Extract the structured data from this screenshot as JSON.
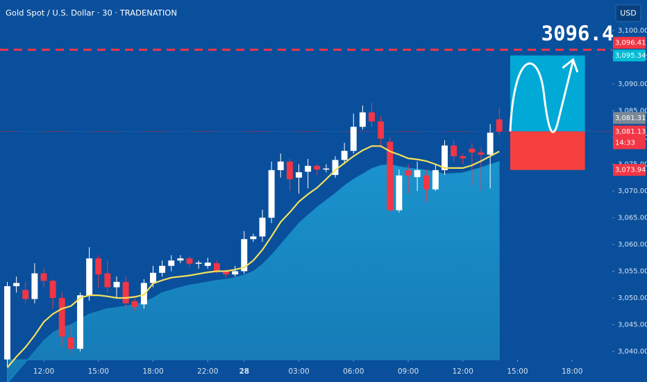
{
  "chart_data": {
    "type": "candlestick",
    "title": "Gold Spot / U.S. Dollar · 30 · TRADENATION",
    "currency": "USD",
    "up_color": "#ffffff",
    "down_color": "#f23645",
    "open": [
      3038.5,
      3052.2,
      3051.5,
      3049.8,
      3054.6,
      3053.2,
      3050,
      3042.6,
      3040.5,
      3050.5,
      3057.4,
      3054.6,
      3052,
      3053,
      3049.4,
      3048.8,
      3052.8,
      3054.7,
      3056,
      3057,
      3057.4,
      3056.4,
      3056,
      3056.5,
      3055,
      3054.4,
      3055,
      3061,
      3061.5,
      3065,
      3073.9,
      3075.5,
      3072.5,
      3073.6,
      3074.7,
      3074,
      3073,
      3075.8,
      3077.5,
      3082,
      3084.7,
      3083,
      3079.2,
      3066.4,
      3073.9,
      3072.6,
      3072.9,
      3070.3,
      3073.9,
      3078.5,
      3076.5,
      3077.9,
      3077.2,
      3076.8,
      3083.4
    ],
    "high": [
      3053,
      3054,
      3053,
      3056.5,
      3055.5,
      3053.5,
      3051,
      3045,
      3051,
      3059.5,
      3058,
      3057,
      3054,
      3054,
      3050,
      3053.5,
      3056,
      3057,
      3058,
      3058,
      3057.8,
      3057,
      3057.5,
      3057,
      3055.5,
      3056,
      3062.5,
      3062,
      3066.5,
      3075.5,
      3077,
      3076,
      3075,
      3076,
      3075,
      3075,
      3076.5,
      3079,
      3084.5,
      3086,
      3086.5,
      3084,
      3080,
      3074,
      3075,
      3075.5,
      3074,
      3075,
      3079.5,
      3079.5,
      3077,
      3079,
      3078,
      3082.5,
      3085.5
    ],
    "low": [
      3037,
      3051,
      3049,
      3049,
      3052,
      3048,
      3041,
      3039.5,
      3040,
      3049.5,
      3052,
      3051,
      3050,
      3048,
      3047.5,
      3048,
      3052,
      3054,
      3055,
      3056.5,
      3055.8,
      3055.5,
      3055.5,
      3054.5,
      3053.8,
      3054,
      3054.5,
      3060.5,
      3060.5,
      3064,
      3072.5,
      3070,
      3069.5,
      3070.5,
      3073,
      3073.5,
      3072.5,
      3075,
      3077,
      3081.5,
      3082,
      3078,
      3066,
      3066,
      3069.5,
      3070,
      3068,
      3070,
      3073,
      3075.5,
      3075,
      3071,
      3070,
      3070.5,
      3080.5
    ],
    "close": [
      3052.2,
      3052.8,
      3049.8,
      3054.6,
      3053.2,
      3050,
      3042.8,
      3040.5,
      3050.5,
      3057.4,
      3054.4,
      3052,
      3053,
      3049,
      3048.3,
      3052.8,
      3054.7,
      3056,
      3057,
      3057.4,
      3056.4,
      3056.6,
      3056.6,
      3055,
      3054.4,
      3055,
      3061,
      3061.5,
      3065,
      3073.9,
      3075.5,
      3072.2,
      3073.5,
      3074.7,
      3074,
      3074.2,
      3075.8,
      3077.5,
      3082,
      3084.7,
      3083,
      3079.8,
      3066.4,
      3072.9,
      3072.9,
      3073.9,
      3070.3,
      3073.9,
      3078.5,
      3076.5,
      3076.1,
      3077.2,
      3076.8,
      3080.9,
      3081.1
    ],
    "ma": {
      "color": "#f4e15c",
      "values": [
        3037,
        3039,
        3040.8,
        3043,
        3045.5,
        3047,
        3048,
        3048.5,
        3050,
        3050.5,
        3050.5,
        3050.3,
        3050,
        3050,
        3050.2,
        3050.6,
        3052.7,
        3053.3,
        3053.8,
        3054,
        3054.2,
        3054.5,
        3054.8,
        3055,
        3055,
        3055.3,
        3055.7,
        3057,
        3059,
        3061.5,
        3064.2,
        3066,
        3068,
        3069.4,
        3070.6,
        3072.2,
        3073.9,
        3075.2,
        3076.5,
        3077.6,
        3078.4,
        3078.4,
        3077.4,
        3076.8,
        3076.1,
        3075.9,
        3075.6,
        3075,
        3074.3,
        3074.3,
        3074.3,
        3074.8,
        3075.6,
        3076.5,
        3077.4
      ]
    },
    "area": {
      "color": "#1389c3",
      "values": [
        3034,
        3036,
        3038,
        3040,
        3042,
        3043.5,
        3044.5,
        3045,
        3046,
        3047,
        3047.5,
        3048,
        3048.2,
        3048.5,
        3048.8,
        3049.2,
        3050,
        3051,
        3051.5,
        3052,
        3052.4,
        3052.7,
        3053,
        3053.3,
        3053.5,
        3053.8,
        3054.3,
        3055,
        3056.3,
        3058,
        3060,
        3062,
        3064,
        3065.5,
        3067,
        3068.3,
        3069.6,
        3071,
        3072.2,
        3073.2,
        3074.2,
        3074.8,
        3075,
        3074.6,
        3074.3,
        3074.1,
        3073.9,
        3073.6,
        3073.2,
        3073.3,
        3073.4,
        3073.9,
        3074.4,
        3075,
        3075.5
      ]
    },
    "xlim": [
      -0.8,
      66.4
    ],
    "ylim": [
      3038.44,
      3105.71
    ],
    "xticks": [
      {
        "value": 4,
        "label": "12:00"
      },
      {
        "value": 10,
        "label": "15:00"
      },
      {
        "value": 16,
        "label": "18:00"
      },
      {
        "value": 22,
        "label": "22:00"
      },
      {
        "value": 26,
        "label": "28"
      },
      {
        "value": 32,
        "label": "03:00"
      },
      {
        "value": 38,
        "label": "06:00"
      },
      {
        "value": 44,
        "label": "09:00"
      },
      {
        "value": 50,
        "label": "12:00"
      },
      {
        "value": 56,
        "label": "15:00"
      },
      {
        "value": 62,
        "label": "18:00"
      }
    ],
    "yticks": [
      {
        "value": 3040,
        "label": "3,040.00"
      },
      {
        "value": 3045,
        "label": "3,045.00"
      },
      {
        "value": 3050,
        "label": "3,050.00"
      },
      {
        "value": 3055,
        "label": "3,055.00"
      },
      {
        "value": 3060,
        "label": "3,060.00"
      },
      {
        "value": 3065,
        "label": "3,065.00"
      },
      {
        "value": 3070,
        "label": "3,070.00"
      },
      {
        "value": 3075,
        "label": "3,075.00"
      },
      {
        "value": 3080,
        "label": "3,080.00"
      },
      {
        "value": 3085,
        "label": "3,085.00"
      },
      {
        "value": 3090,
        "label": "3,090.00"
      },
      {
        "value": 3095,
        "label": "3,095.00"
      },
      {
        "value": 3100,
        "label": "3,100.00"
      }
    ],
    "price_labels": [
      {
        "value": 3096.41,
        "label": "3,096.41",
        "color": "#f23645"
      },
      {
        "value": 3095.34,
        "label": "3,095.34",
        "color": "#00bcd4"
      },
      {
        "value": 3081.31,
        "label": "3,081.31",
        "color": "#7b8896"
      },
      {
        "value": 3081.13,
        "label": "3,081.13",
        "color": "#f23645",
        "countdown": "14:33"
      },
      {
        "value": 3073.94,
        "label": "3,073.94",
        "color": "#f23645"
      }
    ],
    "target_text": "3096.4",
    "projection": {
      "xrange": [
        55.2,
        63.4
      ],
      "profit_color": "#00a9d6",
      "loss_color": "#f5403e"
    }
  }
}
